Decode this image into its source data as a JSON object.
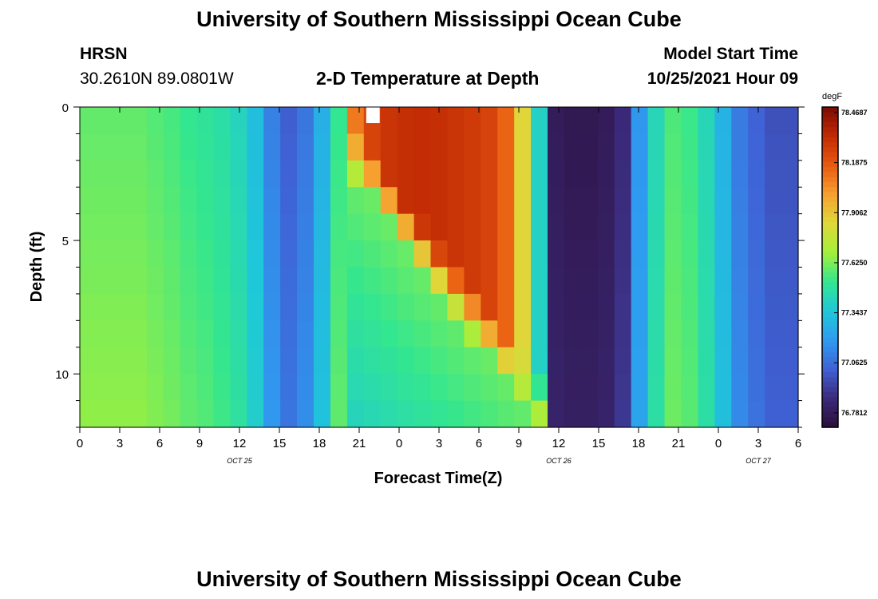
{
  "header": {
    "title": "University of Southern Mississippi Ocean Cube",
    "station": "HRSN",
    "coords": "30.2610N  89.0801W",
    "subtitle": "2-D Temperature at Depth",
    "model_start_label": "Model Start Time",
    "model_start_value": "10/25/2021 Hour 09"
  },
  "footer": {
    "title": "University of Southern Mississippi Ocean Cube"
  },
  "chart_data": {
    "type": "heatmap",
    "title": "2-D Temperature at Depth",
    "xlabel": "Forecast Time(Z)",
    "ylabel": "Depth (ft)",
    "x_ticks": [
      "0",
      "3",
      "6",
      "9",
      "12",
      "15",
      "18",
      "21",
      "0",
      "3",
      "6",
      "9",
      "12",
      "15",
      "18",
      "21",
      "0",
      "3",
      "6"
    ],
    "x_range_hours": [
      0,
      54
    ],
    "date_labels": [
      {
        "text": "OCT 25",
        "hour": 12
      },
      {
        "text": "OCT 26",
        "hour": 36
      },
      {
        "text": "OCT 27",
        "hour": 51
      }
    ],
    "y_ticks": [
      "0",
      "5",
      "10"
    ],
    "y_range": [
      0,
      12
    ],
    "y_inverted": true,
    "colorbar": {
      "unit": "degF",
      "labels": [
        "78.4687",
        "78.1875",
        "77.9062",
        "77.6250",
        "77.3437",
        "77.0625",
        "76.7812"
      ],
      "min": 76.7,
      "max": 78.5
    },
    "colormap": [
      "#2b0f3b",
      "#3b2a7a",
      "#3f62d6",
      "#2f9bf0",
      "#1fc8d8",
      "#33e68f",
      "#a4f03a",
      "#dfd83a",
      "#f6a030",
      "#e85a10",
      "#c12a05",
      "#7a0b02"
    ],
    "columns": [
      {
        "d": 10,
        "s": 0.0,
        "m": 77.62
      },
      {
        "d": 10,
        "s": 0.0,
        "m": 77.62
      },
      {
        "d": 10,
        "s": 0.0,
        "m": 77.62
      },
      {
        "d": 10,
        "s": 0.0,
        "m": 77.62
      },
      {
        "d": 10,
        "s": 0.0,
        "m": 77.6
      },
      {
        "d": 10,
        "s": 0.0,
        "m": 77.58
      },
      {
        "d": 10,
        "s": 0.0,
        "m": 77.55
      },
      {
        "d": 10,
        "s": 0.0,
        "m": 77.53
      },
      {
        "d": 10,
        "s": 0.0,
        "m": 77.5
      },
      {
        "d": 10,
        "s": 0.0,
        "m": 77.45
      },
      {
        "d": 10,
        "s": 0.0,
        "m": 77.35
      },
      {
        "d": 10,
        "s": 0.0,
        "m": 77.15
      },
      {
        "d": 10,
        "s": 0.0,
        "m": 77.05
      },
      {
        "d": 10,
        "s": 0.0,
        "m": 77.12
      },
      {
        "d": 10,
        "s": 0.0,
        "m": 77.3
      },
      {
        "d": 10,
        "s": 0.0,
        "m": 77.55
      },
      {
        "d": 1.5,
        "s": 2.6,
        "m": 78.1
      },
      {
        "d": 1.8,
        "s": 3.4,
        "m": 78.25
      },
      {
        "d": 2.2,
        "s": 4.3,
        "m": 78.3
      },
      {
        "d": 2.6,
        "s": 5.2,
        "m": 78.32
      },
      {
        "d": 3.0,
        "s": 6.0,
        "m": 78.33
      },
      {
        "d": 3.3,
        "s": 6.9,
        "m": 78.32
      },
      {
        "d": 3.6,
        "s": 7.7,
        "m": 78.3
      },
      {
        "d": 4.0,
        "s": 8.5,
        "m": 78.28
      },
      {
        "d": 4.3,
        "s": 9.3,
        "m": 78.25
      },
      {
        "d": 4.6,
        "s": 10.1,
        "m": 78.15
      },
      {
        "d": 5.0,
        "s": 10.8,
        "m": 77.85
      },
      {
        "d": 5.8,
        "s": 11.5,
        "m": 77.4
      },
      {
        "d": 12.0,
        "s": 12.0,
        "m": 76.8
      },
      {
        "d": 12.0,
        "s": 12.0,
        "m": 76.78
      },
      {
        "d": 12.0,
        "s": 12.0,
        "m": 76.78
      },
      {
        "d": 12.0,
        "s": 12.0,
        "m": 76.8
      },
      {
        "d": 12.0,
        "s": 12.0,
        "m": 76.88
      },
      {
        "d": 12.0,
        "s": 12.0,
        "m": 77.2
      },
      {
        "d": 12.0,
        "s": 12.0,
        "m": 77.45
      },
      {
        "d": 12.0,
        "s": 12.0,
        "m": 77.58
      },
      {
        "d": 12.0,
        "s": 12.0,
        "m": 77.55
      },
      {
        "d": 12.0,
        "s": 12.0,
        "m": 77.45
      },
      {
        "d": 12.0,
        "s": 12.0,
        "m": 77.3
      },
      {
        "d": 12.0,
        "s": 12.0,
        "m": 77.12
      },
      {
        "d": 12.0,
        "s": 12.0,
        "m": 77.05
      },
      {
        "d": 12.0,
        "s": 12.0,
        "m": 77.0
      },
      {
        "d": 12.0,
        "s": 12.0,
        "m": 77.0
      }
    ],
    "missing_cells": [
      {
        "col": 17,
        "depth_from": 0,
        "depth_to": 0.6
      }
    ]
  }
}
